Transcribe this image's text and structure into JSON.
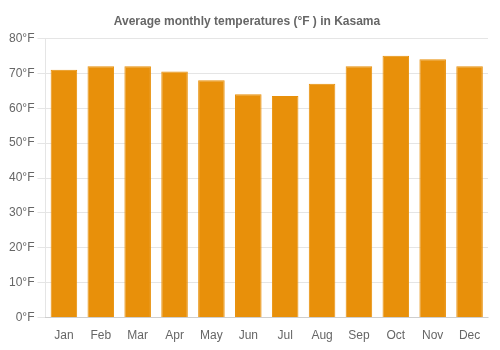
{
  "chart_data": {
    "type": "bar",
    "title": "Average monthly temperatures (°F ) in Kasama",
    "categories": [
      "Jan",
      "Feb",
      "Mar",
      "Apr",
      "May",
      "Jun",
      "Jul",
      "Aug",
      "Sep",
      "Oct",
      "Nov",
      "Dec"
    ],
    "values": [
      71,
      72,
      72,
      70.5,
      68,
      64,
      63.5,
      67,
      72,
      75,
      74,
      72
    ],
    "color": "#E8900A",
    "ylim": [
      0,
      80
    ],
    "yticks": [
      {
        "value": 0,
        "label": "0°F"
      },
      {
        "value": 10,
        "label": "10°F"
      },
      {
        "value": 20,
        "label": "20°F"
      },
      {
        "value": 30,
        "label": "30°F"
      },
      {
        "value": 40,
        "label": "40°F"
      },
      {
        "value": 50,
        "label": "50°F"
      },
      {
        "value": 60,
        "label": "60°F"
      },
      {
        "value": 70,
        "label": "70°F"
      },
      {
        "value": 80,
        "label": "80°F"
      }
    ],
    "grid": true
  }
}
